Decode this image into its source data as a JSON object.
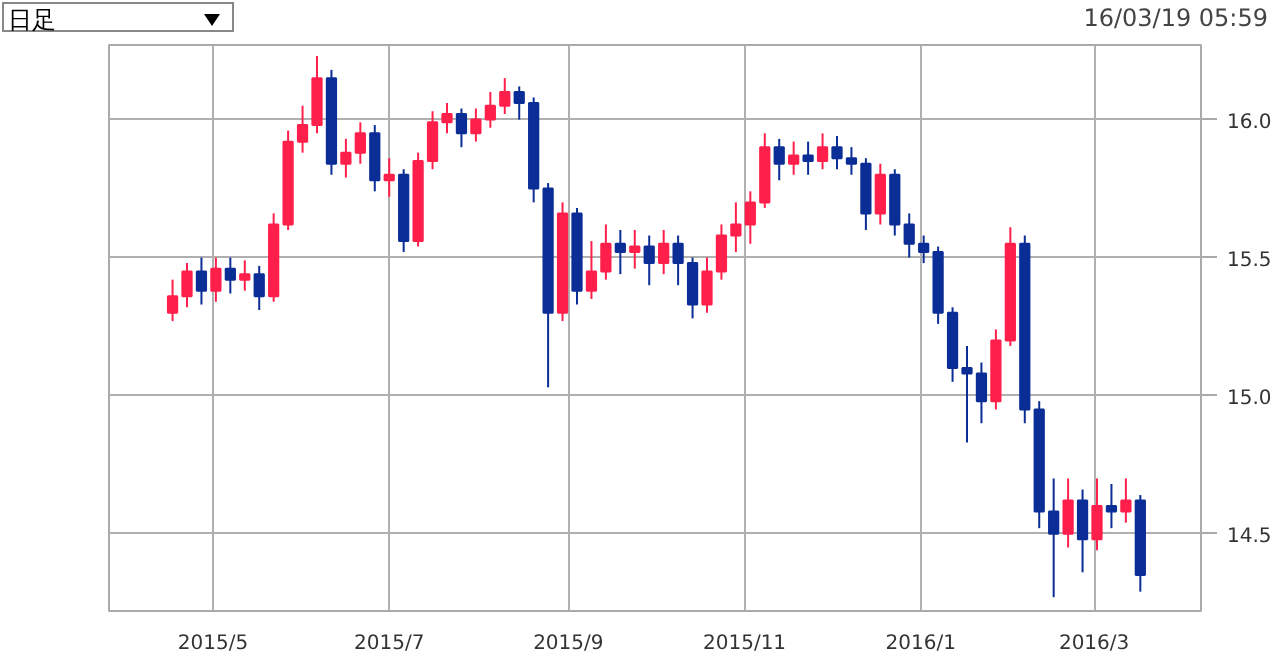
{
  "chart_data": {
    "type": "candlestick",
    "annotations": [
      "日足",
      "16/03/19 05:59"
    ],
    "x": [
      "2015-04-17",
      "2015-04-22",
      "2015-04-27",
      "2015-05-02",
      "2015-05-07",
      "2015-05-12",
      "2015-05-17",
      "2015-05-22",
      "2015-05-27",
      "2015-06-01",
      "2015-06-06",
      "2015-06-11",
      "2015-06-16",
      "2015-06-21",
      "2015-06-26",
      "2015-07-01",
      "2015-07-06",
      "2015-07-11",
      "2015-07-16",
      "2015-07-21",
      "2015-07-26",
      "2015-07-31",
      "2015-08-05",
      "2015-08-10",
      "2015-08-15",
      "2015-08-20",
      "2015-08-25",
      "2015-08-30",
      "2015-09-04",
      "2015-09-09",
      "2015-09-14",
      "2015-09-19",
      "2015-09-24",
      "2015-09-29",
      "2015-10-04",
      "2015-10-09",
      "2015-10-14",
      "2015-10-19",
      "2015-10-24",
      "2015-10-29",
      "2015-11-03",
      "2015-11-08",
      "2015-11-13",
      "2015-11-18",
      "2015-11-23",
      "2015-11-28",
      "2015-12-03",
      "2015-12-08",
      "2015-12-13",
      "2015-12-18",
      "2015-12-23",
      "2015-12-28",
      "2016-01-02",
      "2016-01-07",
      "2016-01-12",
      "2016-01-17",
      "2016-01-22",
      "2016-01-27",
      "2016-02-01",
      "2016-02-06",
      "2016-02-11",
      "2016-02-16",
      "2016-02-21",
      "2016-02-26",
      "2016-03-02",
      "2016-03-07",
      "2016-03-12",
      "2016-03-17"
    ],
    "ohlc": [
      [
        15.3,
        15.42,
        15.27,
        15.36
      ],
      [
        15.36,
        15.48,
        15.32,
        15.45
      ],
      [
        15.45,
        15.5,
        15.33,
        15.38
      ],
      [
        15.38,
        15.5,
        15.34,
        15.46
      ],
      [
        15.46,
        15.5,
        15.37,
        15.42
      ],
      [
        15.42,
        15.49,
        15.38,
        15.44
      ],
      [
        15.44,
        15.47,
        15.31,
        15.36
      ],
      [
        15.36,
        15.66,
        15.34,
        15.62
      ],
      [
        15.62,
        15.96,
        15.6,
        15.92
      ],
      [
        15.92,
        16.05,
        15.88,
        15.98
      ],
      [
        15.98,
        16.23,
        15.95,
        16.15
      ],
      [
        16.15,
        16.18,
        15.8,
        15.84
      ],
      [
        15.84,
        15.93,
        15.79,
        15.88
      ],
      [
        15.88,
        15.99,
        15.84,
        15.95
      ],
      [
        15.95,
        15.98,
        15.74,
        15.78
      ],
      [
        15.78,
        15.86,
        15.72,
        15.8
      ],
      [
        15.8,
        15.82,
        15.52,
        15.56
      ],
      [
        15.56,
        15.88,
        15.54,
        15.85
      ],
      [
        15.85,
        16.03,
        15.82,
        15.99
      ],
      [
        15.99,
        16.06,
        15.95,
        16.02
      ],
      [
        16.02,
        16.04,
        15.9,
        15.95
      ],
      [
        15.95,
        16.04,
        15.92,
        16.0
      ],
      [
        16.0,
        16.1,
        15.97,
        16.05
      ],
      [
        16.05,
        16.15,
        16.02,
        16.1
      ],
      [
        16.1,
        16.12,
        16.0,
        16.06
      ],
      [
        16.06,
        16.08,
        15.7,
        15.75
      ],
      [
        15.75,
        15.77,
        15.03,
        15.3
      ],
      [
        15.3,
        15.7,
        15.27,
        15.66
      ],
      [
        15.66,
        15.68,
        15.33,
        15.38
      ],
      [
        15.38,
        15.56,
        15.35,
        15.45
      ],
      [
        15.45,
        15.62,
        15.42,
        15.55
      ],
      [
        15.55,
        15.6,
        15.44,
        15.52
      ],
      [
        15.52,
        15.6,
        15.46,
        15.54
      ],
      [
        15.54,
        15.58,
        15.4,
        15.48
      ],
      [
        15.48,
        15.6,
        15.44,
        15.55
      ],
      [
        15.55,
        15.58,
        15.4,
        15.48
      ],
      [
        15.48,
        15.5,
        15.28,
        15.33
      ],
      [
        15.33,
        15.5,
        15.3,
        15.45
      ],
      [
        15.45,
        15.62,
        15.42,
        15.58
      ],
      [
        15.58,
        15.7,
        15.52,
        15.62
      ],
      [
        15.62,
        15.74,
        15.55,
        15.7
      ],
      [
        15.7,
        15.95,
        15.68,
        15.9
      ],
      [
        15.9,
        15.93,
        15.78,
        15.84
      ],
      [
        15.84,
        15.92,
        15.8,
        15.87
      ],
      [
        15.87,
        15.92,
        15.8,
        15.85
      ],
      [
        15.85,
        15.95,
        15.82,
        15.9
      ],
      [
        15.9,
        15.94,
        15.82,
        15.86
      ],
      [
        15.86,
        15.9,
        15.8,
        15.84
      ],
      [
        15.84,
        15.86,
        15.6,
        15.66
      ],
      [
        15.66,
        15.84,
        15.62,
        15.8
      ],
      [
        15.8,
        15.82,
        15.58,
        15.62
      ],
      [
        15.62,
        15.66,
        15.5,
        15.55
      ],
      [
        15.55,
        15.58,
        15.48,
        15.52
      ],
      [
        15.52,
        15.54,
        15.26,
        15.3
      ],
      [
        15.3,
        15.32,
        15.05,
        15.1
      ],
      [
        15.1,
        15.18,
        14.83,
        15.08
      ],
      [
        15.08,
        15.12,
        14.9,
        14.98
      ],
      [
        14.98,
        15.24,
        14.95,
        15.2
      ],
      [
        15.2,
        15.61,
        15.18,
        15.55
      ],
      [
        15.55,
        15.58,
        14.9,
        14.95
      ],
      [
        14.95,
        14.98,
        14.52,
        14.58
      ],
      [
        14.58,
        14.7,
        14.27,
        14.5
      ],
      [
        14.5,
        14.7,
        14.45,
        14.62
      ],
      [
        14.62,
        14.66,
        14.36,
        14.48
      ],
      [
        14.48,
        14.7,
        14.44,
        14.6
      ],
      [
        14.6,
        14.68,
        14.52,
        14.58
      ],
      [
        14.58,
        14.7,
        14.54,
        14.62
      ],
      [
        14.62,
        14.64,
        14.29,
        14.35
      ]
    ],
    "colors": [
      "#ff1f4b",
      "#ff1f4b",
      "#0a2d96",
      "#ff1f4b",
      "#0a2d96",
      "#ff1f4b",
      "#0a2d96",
      "#ff1f4b",
      "#ff1f4b",
      "#ff1f4b",
      "#ff1f4b",
      "#0a2d96",
      "#ff1f4b",
      "#ff1f4b",
      "#0a2d96",
      "#ff1f4b",
      "#0a2d96",
      "#ff1f4b",
      "#ff1f4b",
      "#ff1f4b",
      "#0a2d96",
      "#ff1f4b",
      "#ff1f4b",
      "#ff1f4b",
      "#0a2d96",
      "#0a2d96",
      "#0a2d96",
      "#ff1f4b",
      "#0a2d96",
      "#ff1f4b",
      "#ff1f4b",
      "#0a2d96",
      "#ff1f4b",
      "#0a2d96",
      "#ff1f4b",
      "#0a2d96",
      "#0a2d96",
      "#ff1f4b",
      "#ff1f4b",
      "#ff1f4b",
      "#ff1f4b",
      "#ff1f4b",
      "#0a2d96",
      "#ff1f4b",
      "#0a2d96",
      "#ff1f4b",
      "#0a2d96",
      "#0a2d96",
      "#0a2d96",
      "#ff1f4b",
      "#0a2d96",
      "#0a2d96",
      "#0a2d96",
      "#0a2d96",
      "#0a2d96",
      "#0a2d96",
      "#0a2d96",
      "#ff1f4b",
      "#ff1f4b",
      "#0a2d96",
      "#0a2d96",
      "#0a2d96",
      "#ff1f4b",
      "#0a2d96",
      "#ff1f4b",
      "#0a2d96",
      "#ff1f4b",
      "#0a2d96"
    ],
    "xlim": [
      "2015-03-26",
      "2016-04-07"
    ],
    "xticks": [
      {
        "value": "2015-05-01",
        "label": "2015/5"
      },
      {
        "value": "2015-07-01",
        "label": "2015/7"
      },
      {
        "value": "2015-09-01",
        "label": "2015/9"
      },
      {
        "value": "2015-11-01",
        "label": "2015/11"
      },
      {
        "value": "2016-01-01",
        "label": "2016/1"
      },
      {
        "value": "2016-03-01",
        "label": "2016/3"
      }
    ],
    "ylim": [
      14.22,
      16.27
    ],
    "yticks": [
      {
        "value": 14.5,
        "label": "14.5"
      },
      {
        "value": 15.0,
        "label": "15.0"
      },
      {
        "value": 15.5,
        "label": "15.5"
      },
      {
        "value": 16.0,
        "label": "16.0"
      }
    ],
    "grid": true
  }
}
